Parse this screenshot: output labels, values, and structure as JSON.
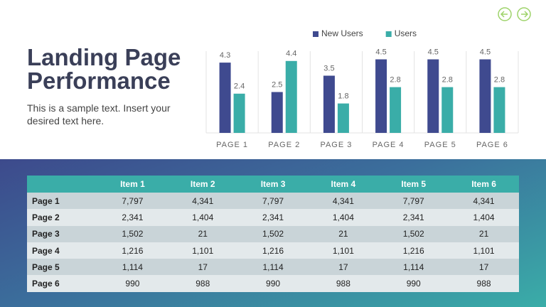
{
  "title": "Landing Page Performance",
  "subtitle": "This is a sample text. Insert your desired text here.",
  "chart_data": {
    "type": "bar",
    "categories": [
      "PAGE 1",
      "PAGE 2",
      "PAGE 3",
      "PAGE 4",
      "PAGE 5",
      "PAGE 6"
    ],
    "series": [
      {
        "name": "New Users",
        "color": "#3f4a8f",
        "values": [
          4.3,
          2.5,
          3.5,
          4.5,
          4.5,
          4.5
        ]
      },
      {
        "name": "Users",
        "color": "#3aada8",
        "values": [
          2.4,
          4.4,
          1.8,
          2.8,
          2.8,
          2.8
        ]
      }
    ],
    "ylim": [
      0,
      5
    ],
    "legend": "top"
  },
  "table": {
    "columns": [
      "Item 1",
      "Item 2",
      "Item 3",
      "Item 4",
      "Item 5",
      "Item 6"
    ],
    "rows": [
      {
        "label": "Page 1",
        "cells": [
          "7,797",
          "4,341",
          "7,797",
          "4,341",
          "7,797",
          "4,341"
        ]
      },
      {
        "label": "Page 2",
        "cells": [
          "2,341",
          "1,404",
          "2,341",
          "1,404",
          "2,341",
          "1,404"
        ]
      },
      {
        "label": "Page 3",
        "cells": [
          "1,502",
          "21",
          "1,502",
          "21",
          "1,502",
          "21"
        ]
      },
      {
        "label": "Page 4",
        "cells": [
          "1,216",
          "1,101",
          "1,216",
          "1,101",
          "1,216",
          "1,101"
        ]
      },
      {
        "label": "Page 5",
        "cells": [
          "1,114",
          "17",
          "1,114",
          "17",
          "1,114",
          "17"
        ]
      },
      {
        "label": "Page 6",
        "cells": [
          "990",
          "988",
          "990",
          "988",
          "990",
          "988"
        ]
      }
    ]
  }
}
